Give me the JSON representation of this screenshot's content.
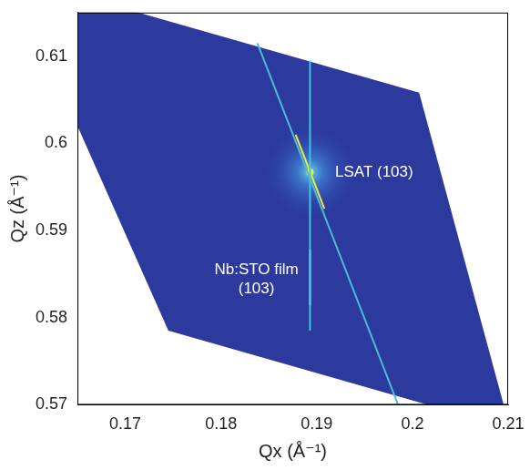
{
  "chart_data": {
    "type": "scatter",
    "x_label": "Qx (Å⁻¹)",
    "y_label": "Qz (Å⁻¹)",
    "xlim": [
      0.165,
      0.21
    ],
    "xticks": [
      0.17,
      0.18,
      0.19,
      0.2,
      0.21
    ],
    "ylim": [
      0.57,
      0.615
    ],
    "yticks": [
      0.57,
      0.58,
      0.59,
      0.6,
      0.61
    ],
    "grid": false,
    "series": [
      {
        "type": "area",
        "color": "#2b3a9c",
        "values": [
          [
            0.165,
            0.617
          ],
          [
            0.2007,
            0.6058
          ],
          [
            0.2102,
            0.5673
          ],
          [
            0.1745,
            0.5785
          ],
          [
            0.165,
            0.602
          ]
        ]
      },
      {
        "type": "line",
        "color": "#4fb9d8",
        "values": [
          [
            0.1838,
            0.6115
          ],
          [
            0.1985,
            0.57
          ]
        ]
      },
      {
        "type": "line",
        "color": "#3fc4e8",
        "values": [
          [
            0.1893,
            0.6095
          ],
          [
            0.1893,
            0.5785
          ]
        ]
      },
      {
        "type": "line",
        "color": "#f2e83a",
        "values": [
          [
            0.1878,
            0.601
          ],
          [
            0.1908,
            0.5925
          ]
        ]
      },
      {
        "type": "line",
        "color": "#f5e72a",
        "values": [
          [
            0.1893,
            0.5878
          ],
          [
            0.1893,
            0.5814
          ]
        ]
      },
      {
        "type": "point",
        "color": "#fbf224",
        "values": [
          [
            0.1893,
            0.5967
          ]
        ]
      }
    ],
    "annotations": [
      {
        "text": [
          "LSAT (103)"
        ],
        "x": 0.196,
        "y": 0.5967
      },
      {
        "text": [
          "Nb:STO film",
          "(103)"
        ],
        "x": 0.1837,
        "y": 0.5855
      }
    ]
  }
}
